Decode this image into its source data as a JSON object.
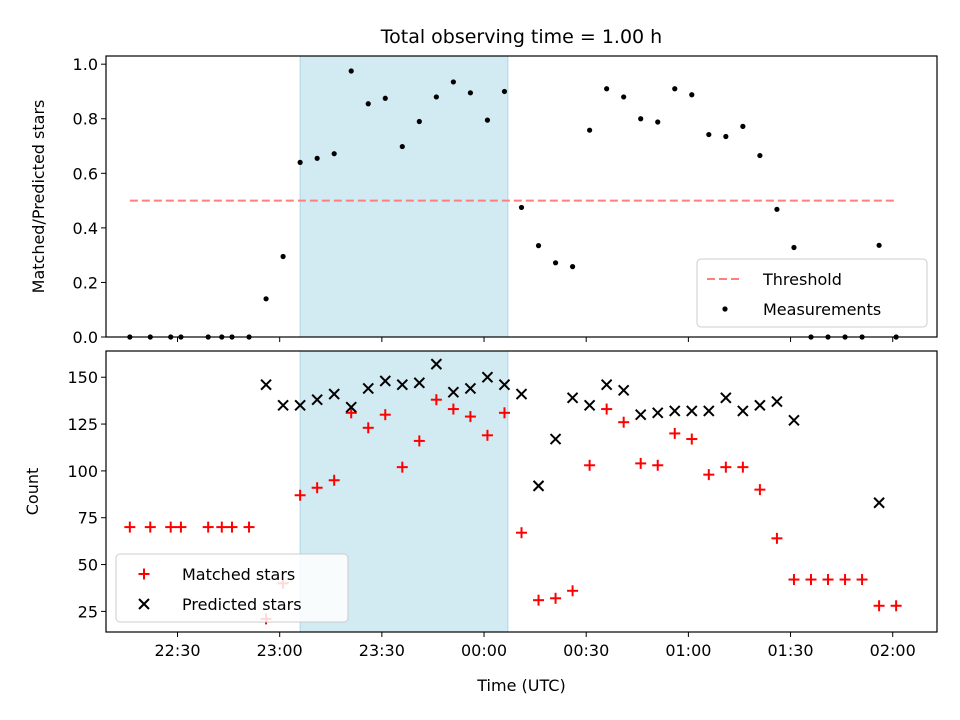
{
  "chart_data": [
    {
      "type": "scatter",
      "title": "Total observing time = 1.00 h",
      "xlabel": "",
      "ylabel": "Matched/Predicted stars",
      "xlim": [
        "22:09",
        "02:13"
      ],
      "ylim": [
        0,
        1.03
      ],
      "yticks": [
        0.0,
        0.2,
        0.4,
        0.6,
        0.8,
        1.0
      ],
      "ytick_labels": [
        "0.0",
        "0.2",
        "0.4",
        "0.6",
        "0.8",
        "1.0"
      ],
      "shaded_interval": [
        "23:06",
        "00:07"
      ],
      "shade_color": "#add8e6",
      "legend_position": "lower right",
      "series": [
        {
          "name": "Threshold",
          "kind": "dashed-line",
          "color": "#ff7f7f",
          "points": [
            {
              "x": "22:16",
              "y": 0.5
            },
            {
              "x": "02:01",
              "y": 0.5
            }
          ]
        },
        {
          "name": "Measurements",
          "kind": "dot",
          "color": "#000000",
          "points": [
            {
              "x": "22:16",
              "y": 0.0
            },
            {
              "x": "22:22",
              "y": 0.0
            },
            {
              "x": "22:28",
              "y": 0.0
            },
            {
              "x": "22:31",
              "y": 0.0
            },
            {
              "x": "22:39",
              "y": 0.0
            },
            {
              "x": "22:43",
              "y": 0.0
            },
            {
              "x": "22:46",
              "y": 0.0
            },
            {
              "x": "22:51",
              "y": 0.0
            },
            {
              "x": "22:56",
              "y": 0.14
            },
            {
              "x": "23:01",
              "y": 0.295
            },
            {
              "x": "23:06",
              "y": 0.64
            },
            {
              "x": "23:11",
              "y": 0.655
            },
            {
              "x": "23:16",
              "y": 0.672
            },
            {
              "x": "23:21",
              "y": 0.975
            },
            {
              "x": "23:26",
              "y": 0.855
            },
            {
              "x": "23:31",
              "y": 0.875
            },
            {
              "x": "23:36",
              "y": 0.698
            },
            {
              "x": "23:41",
              "y": 0.79
            },
            {
              "x": "23:46",
              "y": 0.88
            },
            {
              "x": "23:51",
              "y": 0.935
            },
            {
              "x": "23:56",
              "y": 0.895
            },
            {
              "x": "00:01",
              "y": 0.795
            },
            {
              "x": "00:06",
              "y": 0.9
            },
            {
              "x": "00:11",
              "y": 0.475
            },
            {
              "x": "00:16",
              "y": 0.335
            },
            {
              "x": "00:21",
              "y": 0.272
            },
            {
              "x": "00:26",
              "y": 0.258
            },
            {
              "x": "00:31",
              "y": 0.758
            },
            {
              "x": "00:36",
              "y": 0.91
            },
            {
              "x": "00:41",
              "y": 0.88
            },
            {
              "x": "00:46",
              "y": 0.8
            },
            {
              "x": "00:51",
              "y": 0.788
            },
            {
              "x": "00:56",
              "y": 0.91
            },
            {
              "x": "01:01",
              "y": 0.888
            },
            {
              "x": "01:06",
              "y": 0.742
            },
            {
              "x": "01:11",
              "y": 0.735
            },
            {
              "x": "01:16",
              "y": 0.772
            },
            {
              "x": "01:21",
              "y": 0.665
            },
            {
              "x": "01:26",
              "y": 0.468
            },
            {
              "x": "01:31",
              "y": 0.328
            },
            {
              "x": "01:36",
              "y": 0.0
            },
            {
              "x": "01:41",
              "y": 0.0
            },
            {
              "x": "01:46",
              "y": 0.0
            },
            {
              "x": "01:51",
              "y": 0.0
            },
            {
              "x": "01:56",
              "y": 0.336
            },
            {
              "x": "02:01",
              "y": 0.0
            }
          ]
        }
      ]
    },
    {
      "type": "scatter",
      "title": "",
      "xlabel": "Time (UTC)",
      "ylabel": "Count",
      "xlim": [
        "22:09",
        "02:13"
      ],
      "ylim": [
        14,
        164
      ],
      "yticks": [
        25,
        50,
        75,
        100,
        125,
        150
      ],
      "ytick_labels": [
        "25",
        "50",
        "75",
        "100",
        "125",
        "150"
      ],
      "xticks": [
        "22:30",
        "23:00",
        "23:30",
        "00:00",
        "00:30",
        "01:00",
        "01:30",
        "02:00"
      ],
      "xtick_labels": [
        "22:30",
        "23:00",
        "23:30",
        "00:00",
        "00:30",
        "01:00",
        "01:30",
        "02:00"
      ],
      "shaded_interval": [
        "23:06",
        "00:07"
      ],
      "shade_color": "#add8e6",
      "legend_position": "lower left",
      "series": [
        {
          "name": "Matched stars",
          "kind": "plus",
          "color": "#ff0000",
          "points": [
            {
              "x": "22:16",
              "y": 70
            },
            {
              "x": "22:22",
              "y": 70
            },
            {
              "x": "22:28",
              "y": 70
            },
            {
              "x": "22:31",
              "y": 70
            },
            {
              "x": "22:39",
              "y": 70
            },
            {
              "x": "22:43",
              "y": 70
            },
            {
              "x": "22:46",
              "y": 70
            },
            {
              "x": "22:51",
              "y": 70
            },
            {
              "x": "22:56",
              "y": 21
            },
            {
              "x": "23:01",
              "y": 40
            },
            {
              "x": "23:06",
              "y": 87
            },
            {
              "x": "23:11",
              "y": 91
            },
            {
              "x": "23:16",
              "y": 95
            },
            {
              "x": "23:21",
              "y": 131
            },
            {
              "x": "23:26",
              "y": 123
            },
            {
              "x": "23:31",
              "y": 130
            },
            {
              "x": "23:36",
              "y": 102
            },
            {
              "x": "23:41",
              "y": 116
            },
            {
              "x": "23:46",
              "y": 138
            },
            {
              "x": "23:51",
              "y": 133
            },
            {
              "x": "23:56",
              "y": 129
            },
            {
              "x": "00:01",
              "y": 119
            },
            {
              "x": "00:06",
              "y": 131
            },
            {
              "x": "00:11",
              "y": 67
            },
            {
              "x": "00:16",
              "y": 31
            },
            {
              "x": "00:21",
              "y": 32
            },
            {
              "x": "00:26",
              "y": 36
            },
            {
              "x": "00:31",
              "y": 103
            },
            {
              "x": "00:36",
              "y": 133
            },
            {
              "x": "00:41",
              "y": 126
            },
            {
              "x": "00:46",
              "y": 104
            },
            {
              "x": "00:51",
              "y": 103
            },
            {
              "x": "00:56",
              "y": 120
            },
            {
              "x": "01:01",
              "y": 117
            },
            {
              "x": "01:06",
              "y": 98
            },
            {
              "x": "01:11",
              "y": 102
            },
            {
              "x": "01:16",
              "y": 102
            },
            {
              "x": "01:21",
              "y": 90
            },
            {
              "x": "01:26",
              "y": 64
            },
            {
              "x": "01:31",
              "y": 42
            },
            {
              "x": "01:36",
              "y": 42
            },
            {
              "x": "01:41",
              "y": 42
            },
            {
              "x": "01:46",
              "y": 42
            },
            {
              "x": "01:51",
              "y": 42
            },
            {
              "x": "01:56",
              "y": 28
            },
            {
              "x": "02:01",
              "y": 28
            }
          ]
        },
        {
          "name": "Predicted stars",
          "kind": "x",
          "color": "#000000",
          "points": [
            {
              "x": "22:56",
              "y": 146
            },
            {
              "x": "23:01",
              "y": 135
            },
            {
              "x": "23:06",
              "y": 135
            },
            {
              "x": "23:11",
              "y": 138
            },
            {
              "x": "23:16",
              "y": 141
            },
            {
              "x": "23:21",
              "y": 134
            },
            {
              "x": "23:26",
              "y": 144
            },
            {
              "x": "23:31",
              "y": 148
            },
            {
              "x": "23:36",
              "y": 146
            },
            {
              "x": "23:41",
              "y": 147
            },
            {
              "x": "23:46",
              "y": 157
            },
            {
              "x": "23:51",
              "y": 142
            },
            {
              "x": "23:56",
              "y": 144
            },
            {
              "x": "00:01",
              "y": 150
            },
            {
              "x": "00:06",
              "y": 146
            },
            {
              "x": "00:11",
              "y": 141
            },
            {
              "x": "00:16",
              "y": 92
            },
            {
              "x": "00:21",
              "y": 117
            },
            {
              "x": "00:26",
              "y": 139
            },
            {
              "x": "00:31",
              "y": 135
            },
            {
              "x": "00:36",
              "y": 146
            },
            {
              "x": "00:41",
              "y": 143
            },
            {
              "x": "00:46",
              "y": 130
            },
            {
              "x": "00:51",
              "y": 131
            },
            {
              "x": "00:56",
              "y": 132
            },
            {
              "x": "01:01",
              "y": 132
            },
            {
              "x": "01:06",
              "y": 132
            },
            {
              "x": "01:11",
              "y": 139
            },
            {
              "x": "01:16",
              "y": 132
            },
            {
              "x": "01:21",
              "y": 135
            },
            {
              "x": "01:26",
              "y": 137
            },
            {
              "x": "01:31",
              "y": 127
            },
            {
              "x": "01:56",
              "y": 83
            }
          ]
        }
      ]
    }
  ]
}
